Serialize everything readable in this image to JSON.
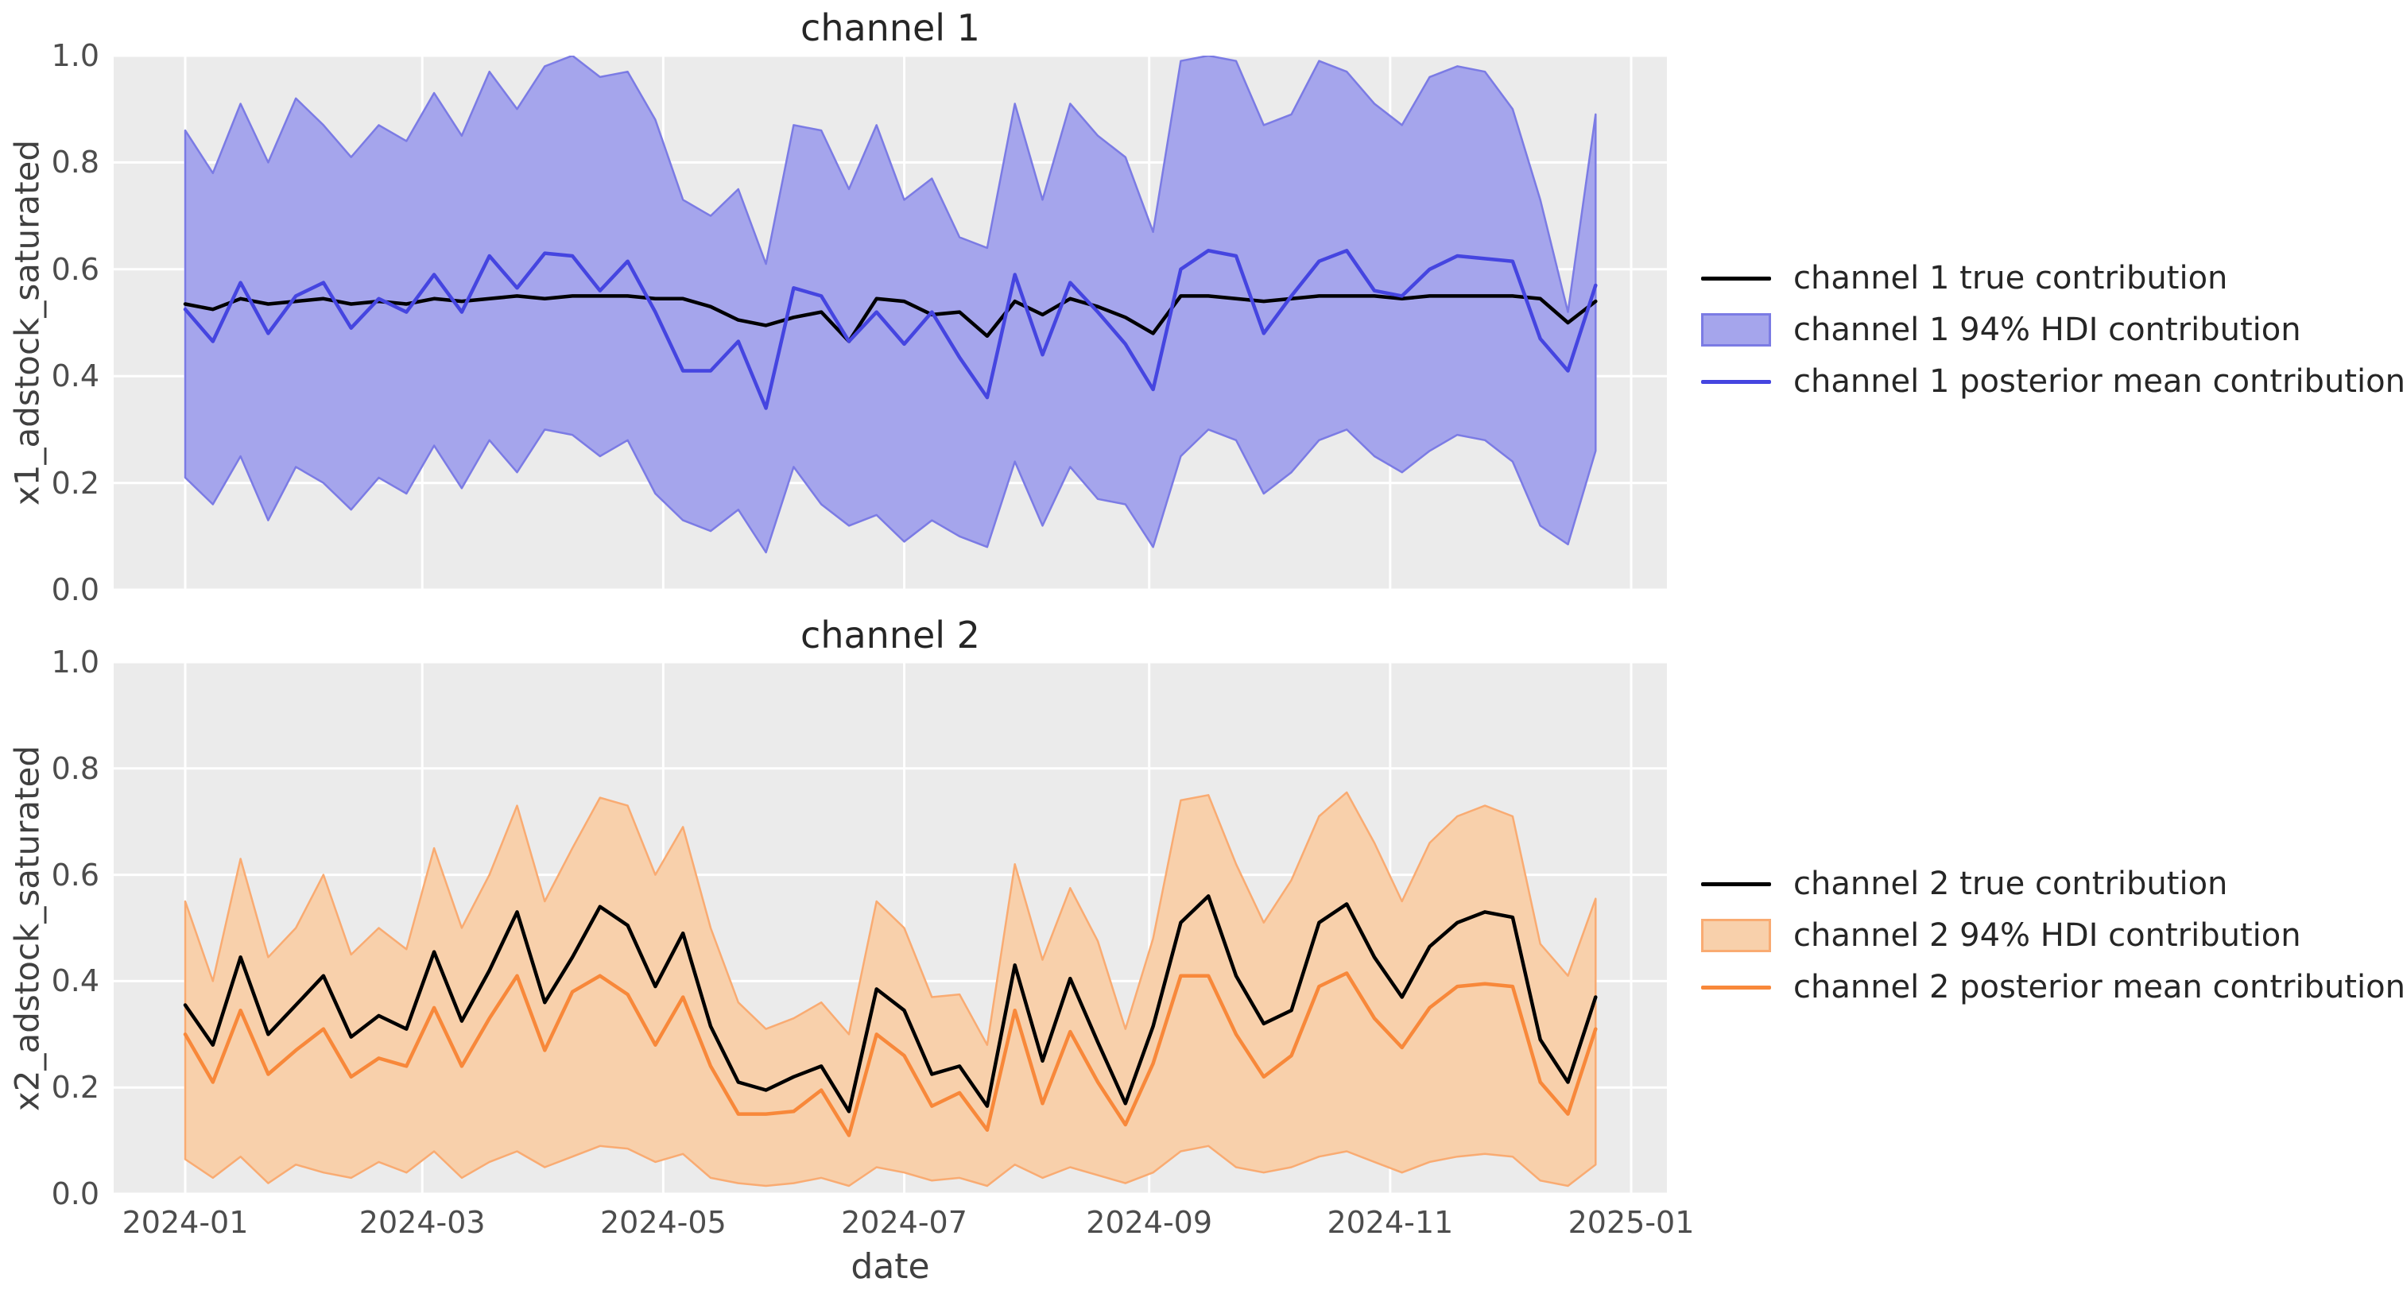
{
  "figure": {
    "background": "#ffffff",
    "axes_background": "#ebebeb",
    "grid_color": "#ffffff",
    "tick_color": "#4d4d4d",
    "title_color": "#262626",
    "true_line_color": "#000000",
    "channel1_line_color": "#4545e0",
    "channel1_band_fill": "#a5a5ec",
    "channel1_band_edge": "#7b7be4",
    "channel2_line_color": "#f8883a",
    "channel2_band_fill": "#f8d0ab",
    "channel2_band_edge": "#f9ab72"
  },
  "chart_data": [
    {
      "type": "line",
      "title": "channel 1",
      "xlabel": "date",
      "ylabel": "x1_adstock_saturated",
      "ylim": [
        0.0,
        1.0
      ],
      "grid": true,
      "legend_position": "center-right outside",
      "y_tick_labels": [
        "0.0",
        "0.2",
        "0.4",
        "0.6",
        "0.8",
        "1.0"
      ],
      "y_tick_values": [
        0.0,
        0.2,
        0.4,
        0.6,
        0.8,
        1.0
      ],
      "x_tick_labels": [
        "2024-01",
        "2024-03",
        "2024-05",
        "2024-07",
        "2024-09",
        "2024-11",
        "2025-01"
      ],
      "x_tick_days": [
        0,
        60,
        121,
        182,
        244,
        305,
        366
      ],
      "x_step_days": 7,
      "n_points": 52,
      "show_x_tick_labels": false,
      "series": [
        {
          "name": "channel 1 true contribution",
          "kind": "line",
          "color": "#000000",
          "values": [
            0.535,
            0.525,
            0.545,
            0.535,
            0.54,
            0.545,
            0.535,
            0.54,
            0.535,
            0.545,
            0.54,
            0.545,
            0.55,
            0.545,
            0.55,
            0.55,
            0.55,
            0.545,
            0.545,
            0.53,
            0.505,
            0.495,
            0.51,
            0.52,
            0.465,
            0.545,
            0.54,
            0.515,
            0.52,
            0.475,
            0.54,
            0.515,
            0.545,
            0.53,
            0.51,
            0.48,
            0.55,
            0.55,
            0.545,
            0.54,
            0.545,
            0.55,
            0.55,
            0.55,
            0.545,
            0.55,
            0.55,
            0.55,
            0.55,
            0.545,
            0.5,
            0.54
          ]
        },
        {
          "name": "channel 1 94% HDI contribution",
          "kind": "band",
          "fill": "#a5a5ec",
          "edge": "#7b7be4",
          "upper": [
            0.86,
            0.78,
            0.91,
            0.8,
            0.92,
            0.87,
            0.81,
            0.87,
            0.84,
            0.93,
            0.85,
            0.97,
            0.9,
            0.98,
            1.0,
            0.96,
            0.97,
            0.88,
            0.73,
            0.7,
            0.75,
            0.61,
            0.87,
            0.86,
            0.75,
            0.87,
            0.73,
            0.77,
            0.66,
            0.64,
            0.91,
            0.73,
            0.91,
            0.85,
            0.81,
            0.67,
            0.99,
            1.0,
            0.99,
            0.87,
            0.89,
            0.99,
            0.97,
            0.91,
            0.87,
            0.96,
            0.98,
            0.97,
            0.9,
            0.73,
            0.52,
            0.89
          ],
          "lower": [
            0.21,
            0.16,
            0.25,
            0.13,
            0.23,
            0.2,
            0.15,
            0.21,
            0.18,
            0.27,
            0.19,
            0.28,
            0.22,
            0.3,
            0.29,
            0.25,
            0.28,
            0.18,
            0.13,
            0.11,
            0.15,
            0.07,
            0.23,
            0.16,
            0.12,
            0.14,
            0.09,
            0.13,
            0.1,
            0.08,
            0.24,
            0.12,
            0.23,
            0.17,
            0.16,
            0.08,
            0.25,
            0.3,
            0.28,
            0.18,
            0.22,
            0.28,
            0.3,
            0.25,
            0.22,
            0.26,
            0.29,
            0.28,
            0.24,
            0.12,
            0.085,
            0.26
          ]
        },
        {
          "name": "channel 1 posterior mean contribution",
          "kind": "line",
          "color": "#4545e0",
          "values": [
            0.525,
            0.465,
            0.575,
            0.48,
            0.55,
            0.575,
            0.49,
            0.545,
            0.52,
            0.59,
            0.52,
            0.625,
            0.565,
            0.63,
            0.625,
            0.56,
            0.615,
            0.52,
            0.41,
            0.41,
            0.465,
            0.34,
            0.565,
            0.55,
            0.465,
            0.52,
            0.46,
            0.52,
            0.435,
            0.36,
            0.59,
            0.44,
            0.575,
            0.52,
            0.46,
            0.375,
            0.6,
            0.635,
            0.625,
            0.48,
            0.55,
            0.615,
            0.635,
            0.56,
            0.55,
            0.6,
            0.625,
            0.62,
            0.615,
            0.47,
            0.41,
            0.57
          ]
        }
      ]
    },
    {
      "type": "line",
      "title": "channel 2",
      "xlabel": "date",
      "ylabel": "x2_adstock_saturated",
      "ylim": [
        0.0,
        1.0
      ],
      "grid": true,
      "legend_position": "center-right outside",
      "y_tick_labels": [
        "0.0",
        "0.2",
        "0.4",
        "0.6",
        "0.8",
        "1.0"
      ],
      "y_tick_values": [
        0.0,
        0.2,
        0.4,
        0.6,
        0.8,
        1.0
      ],
      "x_tick_labels": [
        "2024-01",
        "2024-03",
        "2024-05",
        "2024-07",
        "2024-09",
        "2024-11",
        "2025-01"
      ],
      "x_tick_days": [
        0,
        60,
        121,
        182,
        244,
        305,
        366
      ],
      "x_step_days": 7,
      "n_points": 52,
      "show_x_tick_labels": true,
      "series": [
        {
          "name": "channel 2 true contribution",
          "kind": "line",
          "color": "#000000",
          "values": [
            0.355,
            0.28,
            0.445,
            0.3,
            0.355,
            0.41,
            0.295,
            0.335,
            0.31,
            0.455,
            0.325,
            0.42,
            0.53,
            0.36,
            0.445,
            0.54,
            0.505,
            0.39,
            0.49,
            0.315,
            0.21,
            0.195,
            0.22,
            0.24,
            0.155,
            0.385,
            0.345,
            0.225,
            0.24,
            0.165,
            0.43,
            0.25,
            0.405,
            0.285,
            0.17,
            0.315,
            0.51,
            0.56,
            0.41,
            0.32,
            0.345,
            0.51,
            0.545,
            0.445,
            0.37,
            0.465,
            0.51,
            0.53,
            0.52,
            0.29,
            0.21,
            0.37
          ]
        },
        {
          "name": "channel 2 94% HDI contribution",
          "kind": "band",
          "fill": "#f8d0ab",
          "edge": "#f9ab72",
          "upper": [
            0.55,
            0.4,
            0.63,
            0.445,
            0.5,
            0.6,
            0.45,
            0.5,
            0.46,
            0.65,
            0.5,
            0.6,
            0.73,
            0.55,
            0.65,
            0.745,
            0.73,
            0.6,
            0.69,
            0.5,
            0.36,
            0.31,
            0.33,
            0.36,
            0.3,
            0.55,
            0.5,
            0.37,
            0.375,
            0.28,
            0.62,
            0.44,
            0.575,
            0.475,
            0.31,
            0.48,
            0.74,
            0.75,
            0.62,
            0.51,
            0.59,
            0.71,
            0.755,
            0.66,
            0.55,
            0.66,
            0.71,
            0.73,
            0.71,
            0.47,
            0.41,
            0.555
          ],
          "lower": [
            0.065,
            0.03,
            0.07,
            0.02,
            0.055,
            0.04,
            0.03,
            0.06,
            0.04,
            0.08,
            0.03,
            0.06,
            0.08,
            0.05,
            0.07,
            0.09,
            0.085,
            0.06,
            0.075,
            0.03,
            0.02,
            0.015,
            0.02,
            0.03,
            0.015,
            0.05,
            0.04,
            0.025,
            0.03,
            0.015,
            0.055,
            0.03,
            0.05,
            0.035,
            0.02,
            0.04,
            0.08,
            0.09,
            0.05,
            0.04,
            0.05,
            0.07,
            0.08,
            0.06,
            0.04,
            0.06,
            0.07,
            0.075,
            0.07,
            0.025,
            0.015,
            0.055
          ]
        },
        {
          "name": "channel 2 posterior mean contribution",
          "kind": "line",
          "color": "#f8883a",
          "values": [
            0.3,
            0.21,
            0.345,
            0.225,
            0.27,
            0.31,
            0.22,
            0.255,
            0.24,
            0.35,
            0.24,
            0.33,
            0.41,
            0.27,
            0.38,
            0.41,
            0.375,
            0.28,
            0.37,
            0.24,
            0.15,
            0.15,
            0.155,
            0.195,
            0.11,
            0.3,
            0.26,
            0.165,
            0.19,
            0.12,
            0.345,
            0.17,
            0.305,
            0.21,
            0.13,
            0.245,
            0.41,
            0.41,
            0.3,
            0.22,
            0.26,
            0.39,
            0.415,
            0.33,
            0.275,
            0.35,
            0.39,
            0.395,
            0.39,
            0.21,
            0.15,
            0.31
          ]
        }
      ]
    }
  ]
}
